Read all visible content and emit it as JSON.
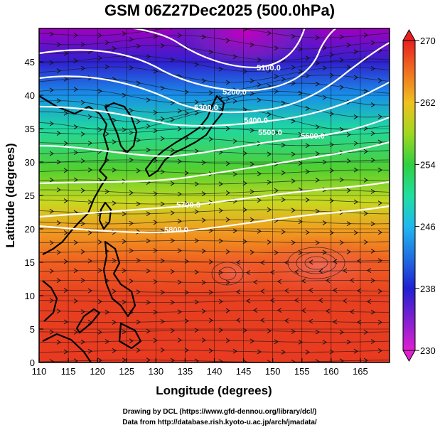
{
  "title": "GSM 06Z27Dec2025 (500.0hPa)",
  "x_axis": {
    "label": "Longitude (degrees)",
    "range": [
      110,
      170
    ],
    "ticks": [
      "110",
      "115",
      "120",
      "125",
      "130",
      "135",
      "140",
      "145",
      "150",
      "155",
      "160",
      "165"
    ]
  },
  "y_axis": {
    "label": "Latitude  (degrees)",
    "range": [
      0,
      50
    ],
    "ticks": [
      "0",
      "5",
      "10",
      "15",
      "20",
      "25",
      "30",
      "35",
      "40",
      "45"
    ]
  },
  "colorbar": {
    "range": [
      230,
      270
    ],
    "ticks": [
      "230",
      "238",
      "246",
      "254",
      "262",
      "270"
    ]
  },
  "contours": [
    {
      "label": "5100.0"
    },
    {
      "label": "5200.0"
    },
    {
      "label": "5300.0"
    },
    {
      "label": "5400.0"
    },
    {
      "label": "5500.0"
    },
    {
      "label": "5600.0"
    },
    {
      "label": "5700.0"
    },
    {
      "label": "5800.0"
    }
  ],
  "credits": {
    "line1": "Drawing by DCL (https://www.gfd-dennou.org/library/dcl/)",
    "line2": "Data from http://database.rish.kyoto-u.ac.jp/arch/jmadata/"
  }
}
